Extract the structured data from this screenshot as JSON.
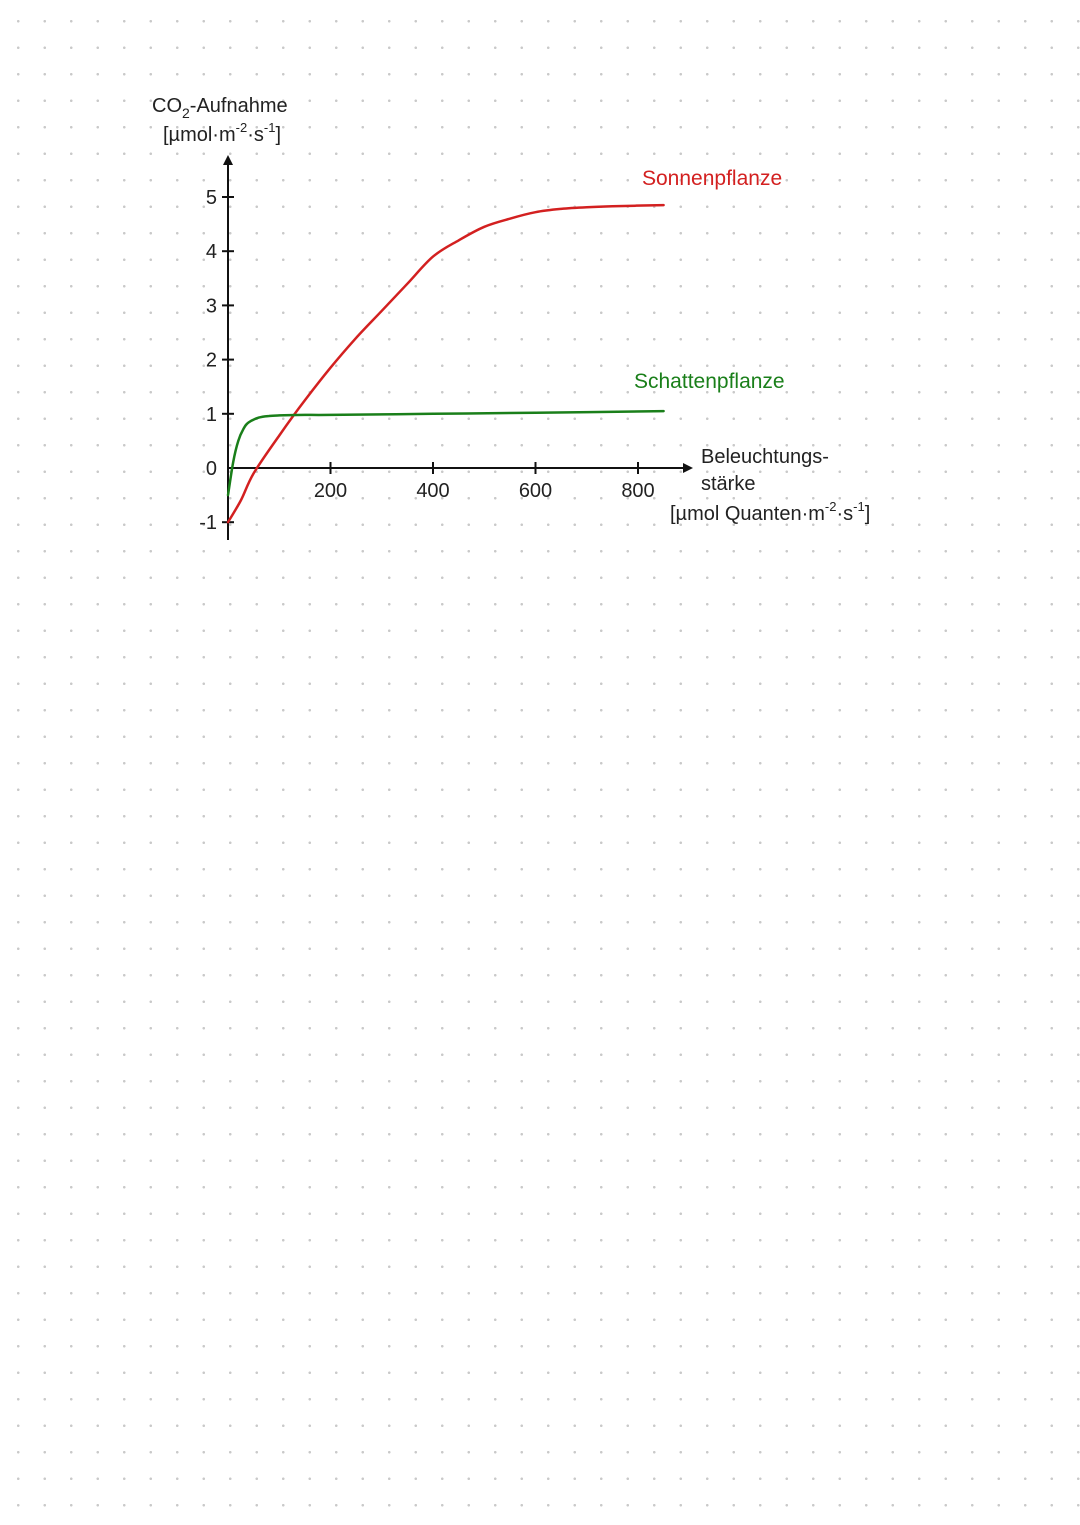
{
  "chart_data": {
    "type": "line",
    "y_axis_title": "CO-Aufnahme",
    "y_axis_title_subscript": "2",
    "y_unit": "[µmol·m·s]",
    "y_unit_parts": [
      "[µmol·m",
      "-2",
      "·s",
      "-1",
      "]"
    ],
    "x_axis_title_line1": "Beleuchtungs-",
    "x_axis_title_line2": "stärke",
    "x_unit": "[µmol Quanten·m·s]",
    "x_unit_parts": [
      "[µmol Quanten·m",
      "-2",
      "·s",
      "-1",
      "]"
    ],
    "x_ticks": [
      "200",
      "400",
      "600",
      "800"
    ],
    "x_tick_values": [
      200,
      400,
      600,
      800
    ],
    "y_ticks": [
      "5",
      "4",
      "3",
      "2",
      "1",
      "0",
      "-1"
    ],
    "y_tick_values": [
      5,
      4,
      3,
      2,
      1,
      0,
      -1
    ],
    "xlim": [
      0,
      850
    ],
    "ylim": [
      -1.3,
      5.4
    ],
    "grid": false,
    "series": [
      {
        "name": "Sonnenpflanze",
        "color": "#d32020",
        "x": [
          0,
          25,
          50,
          100,
          150,
          200,
          250,
          300,
          350,
          400,
          450,
          500,
          550,
          600,
          650,
          700,
          750,
          850
        ],
        "y": [
          -1.0,
          -0.6,
          -0.1,
          0.6,
          1.25,
          1.85,
          2.4,
          2.9,
          3.4,
          3.9,
          4.2,
          4.45,
          4.6,
          4.72,
          4.78,
          4.81,
          4.83,
          4.85
        ]
      },
      {
        "name": "Schattenpflanze",
        "color": "#1a7f1a",
        "x": [
          0,
          10,
          20,
          30,
          40,
          60,
          80,
          100,
          150,
          200,
          400,
          600,
          850
        ],
        "y": [
          -0.5,
          0.1,
          0.5,
          0.72,
          0.84,
          0.93,
          0.96,
          0.97,
          0.98,
          0.98,
          1.0,
          1.02,
          1.05
        ]
      }
    ]
  }
}
